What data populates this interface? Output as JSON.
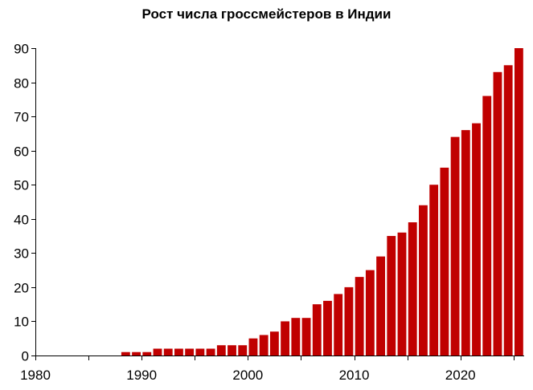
{
  "chart_data": {
    "type": "bar",
    "title": "Рост числа гроссмейстеров в Индии",
    "xlabel": "",
    "ylabel": "",
    "xlim": [
      1980,
      2025
    ],
    "ylim": [
      0,
      90
    ],
    "grid": false,
    "legend": "none",
    "bar_color": "#C00000",
    "x_ticks": [
      1980,
      1990,
      2000,
      2010,
      2020
    ],
    "y_ticks": [
      0,
      10,
      20,
      30,
      40,
      50,
      60,
      70,
      80,
      90
    ],
    "series": [
      {
        "x": [
          1988,
          1989,
          1990,
          1991,
          1992,
          1993,
          1994,
          1995,
          1996,
          1997,
          1998,
          1999,
          2000,
          2001,
          2002,
          2003,
          2004,
          2005,
          2006,
          2007,
          2008,
          2009,
          2010,
          2011,
          2012,
          2013,
          2014,
          2015,
          2016,
          2017,
          2018,
          2019,
          2020,
          2021,
          2022,
          2023,
          2024,
          2025
        ],
        "values": [
          1,
          1,
          1,
          2,
          2,
          2,
          2,
          2,
          2,
          3,
          3,
          3,
          5,
          6,
          7,
          10,
          11,
          11,
          15,
          16,
          18,
          20,
          23,
          25,
          29,
          35,
          36,
          39,
          44,
          50,
          55,
          64,
          66,
          68,
          76,
          83,
          85,
          90
        ]
      }
    ]
  }
}
